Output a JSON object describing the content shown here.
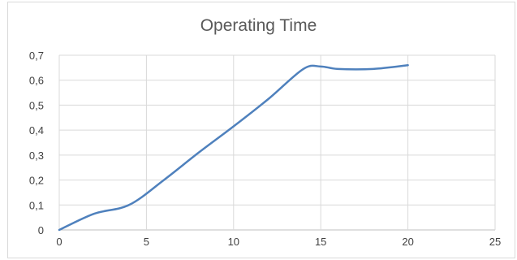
{
  "chart_data": {
    "type": "line",
    "title": "Operating Time",
    "xlabel": "",
    "ylabel": "",
    "xlim": [
      0,
      25
    ],
    "ylim": [
      0,
      0.7
    ],
    "x_ticks": [
      0,
      5,
      10,
      15,
      20,
      25
    ],
    "y_ticks": [
      0,
      0.1,
      0.2,
      0.3,
      0.4,
      0.5,
      0.6,
      0.7
    ],
    "y_tick_labels": [
      "0",
      "0,1",
      "0,2",
      "0,3",
      "0,4",
      "0,5",
      "0,6",
      "0,7"
    ],
    "grid": true,
    "legend": "none",
    "line_color": "#4f81bd",
    "series": [
      {
        "x": [
          0,
          2,
          4,
          6,
          8,
          10,
          12,
          14,
          15,
          16,
          18,
          20
        ],
        "y": [
          0,
          0.065,
          0.1,
          0.2,
          0.31,
          0.415,
          0.525,
          0.645,
          0.655,
          0.645,
          0.645,
          0.66
        ]
      }
    ]
  }
}
